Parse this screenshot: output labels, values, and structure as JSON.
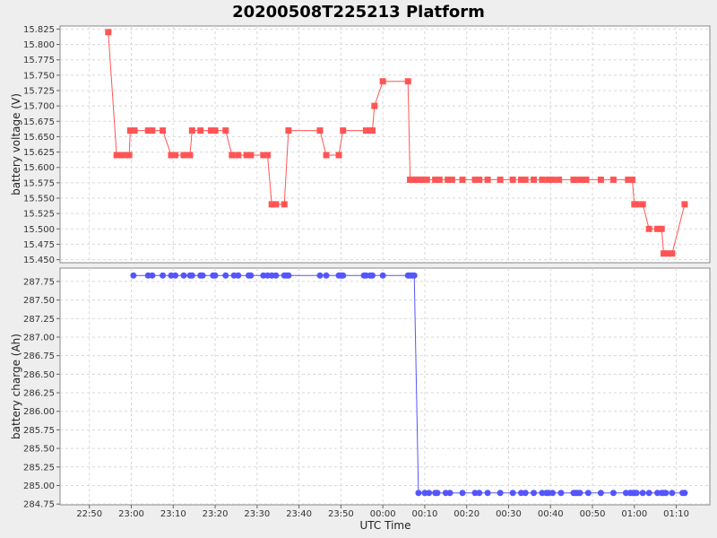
{
  "title": "20200508T225213 Platform",
  "chart_data": {
    "type": "line",
    "title": "20200508T225213 Platform",
    "xlabel": "UTC Time",
    "x_ticks": [
      "22:50",
      "23:00",
      "23:10",
      "23:20",
      "23:30",
      "23:40",
      "23:50",
      "00:00",
      "00:10",
      "00:20",
      "00:30",
      "00:40",
      "00:50",
      "01:00",
      "01:10"
    ],
    "grid": true,
    "panels": [
      {
        "name": "voltage",
        "ylabel": "battery voltage (V)",
        "ylim": [
          15.445,
          15.83
        ],
        "y_ticks": [
          "15.450",
          "15.475",
          "15.500",
          "15.525",
          "15.550",
          "15.575",
          "15.600",
          "15.625",
          "15.650",
          "15.675",
          "15.700",
          "15.725",
          "15.750",
          "15.775",
          "15.800",
          "15.825"
        ],
        "color": "#ff5555",
        "marker": "square",
        "series": {
          "x": [
            "22:54:30",
            "22:56:30",
            "22:57:30",
            "22:58:30",
            "22:59:00",
            "22:59:30",
            "22:59:45",
            "23:00:45",
            "23:04:00",
            "23:05:00",
            "23:07:30",
            "23:09:30",
            "23:10:30",
            "23:12:30",
            "23:14:00",
            "23:14:30",
            "23:16:30",
            "23:19:00",
            "23:20:00",
            "23:22:30",
            "23:24:00",
            "23:25:30",
            "23:27:30",
            "23:28:30",
            "23:31:30",
            "23:32:30",
            "23:33:30",
            "23:34:30",
            "23:36:30",
            "23:37:30",
            "23:45:00",
            "23:46:30",
            "23:49:30",
            "23:50:30",
            "23:56:00",
            "23:57:00",
            "23:57:30",
            "23:58:00",
            "00:00:00",
            "00:06:00",
            "00:06:30",
            "00:07:00",
            "00:07:30",
            "00:08:00",
            "00:08:30",
            "00:09:00",
            "00:09:30",
            "00:10:30",
            "00:12:30",
            "00:13:30",
            "00:15:30",
            "00:16:30",
            "00:19:00",
            "00:22:00",
            "00:23:00",
            "00:25:00",
            "00:28:00",
            "00:31:00",
            "00:33:00",
            "00:34:00",
            "00:36:00",
            "00:38:00",
            "00:39:30",
            "00:40:30",
            "00:42:00",
            "00:45:30",
            "00:46:30",
            "00:47:30",
            "00:48:30",
            "00:52:00",
            "00:55:00",
            "00:58:30",
            "00:59:30",
            "01:00:00",
            "01:00:30",
            "01:02:00",
            "01:03:30",
            "01:05:30",
            "01:06:30",
            "01:07:00",
            "01:08:00",
            "01:09:00",
            "01:12:00"
          ],
          "values": [
            15.82,
            15.62,
            15.62,
            15.62,
            15.62,
            15.62,
            15.66,
            15.66,
            15.66,
            15.66,
            15.66,
            15.62,
            15.62,
            15.62,
            15.62,
            15.66,
            15.66,
            15.66,
            15.66,
            15.66,
            15.62,
            15.62,
            15.62,
            15.62,
            15.62,
            15.62,
            15.54,
            15.54,
            15.54,
            15.66,
            15.66,
            15.62,
            15.62,
            15.66,
            15.66,
            15.66,
            15.66,
            15.7,
            15.74,
            15.74,
            15.58,
            15.58,
            15.58,
            15.58,
            15.58,
            15.58,
            15.58,
            15.58,
            15.58,
            15.58,
            15.58,
            15.58,
            15.58,
            15.58,
            15.58,
            15.58,
            15.58,
            15.58,
            15.58,
            15.58,
            15.58,
            15.58,
            15.58,
            15.58,
            15.58,
            15.58,
            15.58,
            15.58,
            15.58,
            15.58,
            15.58,
            15.58,
            15.58,
            15.54,
            15.54,
            15.54,
            15.5,
            15.5,
            15.5,
            15.46,
            15.46,
            15.46,
            15.54
          ]
        }
      },
      {
        "name": "charge",
        "ylabel": "battery charge (Ah)",
        "ylim": [
          284.74,
          287.93
        ],
        "y_ticks": [
          "284.75",
          "285.00",
          "285.25",
          "285.50",
          "285.75",
          "286.00",
          "286.25",
          "286.50",
          "286.75",
          "287.00",
          "287.25",
          "287.50",
          "287.75"
        ],
        "color": "#5555ff",
        "marker": "circle",
        "series": {
          "x": [
            "23:00:30",
            "23:04:00",
            "23:05:00",
            "23:07:30",
            "23:09:30",
            "23:10:30",
            "23:12:30",
            "23:14:00",
            "23:14:30",
            "23:16:30",
            "23:17:00",
            "23:19:30",
            "23:20:00",
            "23:22:30",
            "23:24:30",
            "23:25:30",
            "23:28:00",
            "23:28:30",
            "23:31:30",
            "23:32:30",
            "23:33:30",
            "23:34:30",
            "23:36:30",
            "23:37:00",
            "23:37:30",
            "23:45:00",
            "23:46:30",
            "23:49:30",
            "23:50:00",
            "23:50:30",
            "23:55:30",
            "23:56:00",
            "23:57:00",
            "23:57:30",
            "24:00:00",
            "24:06:00",
            "24:06:30",
            "24:07:00",
            "24:07:30",
            "24:08:30",
            "24:10:00",
            "24:11:00",
            "24:12:30",
            "24:13:00",
            "24:15:00",
            "24:16:00",
            "24:19:00",
            "24:22:00",
            "24:23:00",
            "24:25:00",
            "24:28:00",
            "24:31:00",
            "24:33:00",
            "24:34:00",
            "24:36:00",
            "24:38:00",
            "24:39:00",
            "24:39:30",
            "24:40:30",
            "24:42:30",
            "24:45:30",
            "24:46:00",
            "24:46:30",
            "24:47:00",
            "24:49:00",
            "24:52:00",
            "24:55:00",
            "24:58:00",
            "24:59:00",
            "24:59:30",
            "25:00:00",
            "25:00:30",
            "25:02:00",
            "25:03:30",
            "25:05:30",
            "25:06:30",
            "25:07:00",
            "25:07:30",
            "25:09:00",
            "25:11:30",
            "25:12:00"
          ],
          "values": [
            287.83,
            287.83,
            287.83,
            287.83,
            287.83,
            287.83,
            287.83,
            287.83,
            287.83,
            287.83,
            287.83,
            287.83,
            287.83,
            287.83,
            287.83,
            287.83,
            287.83,
            287.83,
            287.83,
            287.83,
            287.83,
            287.83,
            287.83,
            287.83,
            287.83,
            287.83,
            287.83,
            287.83,
            287.83,
            287.83,
            287.83,
            287.83,
            287.83,
            287.83,
            287.83,
            287.83,
            287.83,
            287.83,
            287.83,
            284.9,
            284.9,
            284.9,
            284.9,
            284.9,
            284.9,
            284.9,
            284.9,
            284.9,
            284.9,
            284.9,
            284.9,
            284.9,
            284.9,
            284.9,
            284.9,
            284.9,
            284.9,
            284.9,
            284.9,
            284.9,
            284.9,
            284.9,
            284.9,
            284.9,
            284.9,
            284.9,
            284.9,
            284.9,
            284.9,
            284.9,
            284.9,
            284.9,
            284.9,
            284.9,
            284.9,
            284.9,
            284.9,
            284.9,
            284.9,
            284.9,
            284.9
          ]
        }
      }
    ]
  }
}
